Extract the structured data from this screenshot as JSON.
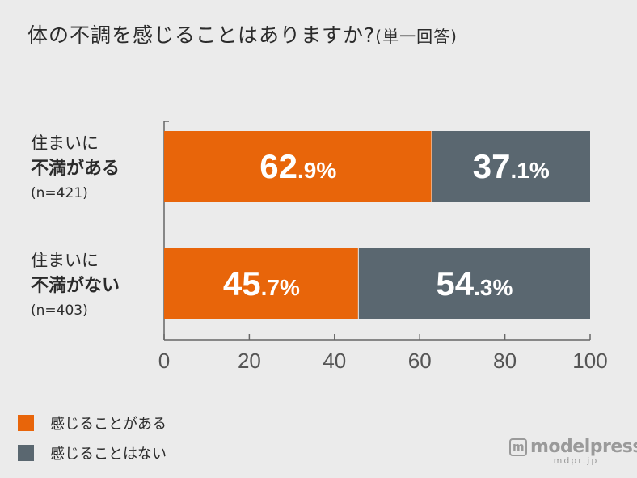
{
  "title": {
    "main": "体の不調を感じることはありますか?",
    "sub": "(単一回答)"
  },
  "rows": [
    {
      "line1": "住まいに",
      "line2": "不満がある",
      "line3": "(n=421)"
    },
    {
      "line1": "住まいに",
      "line2": "不満がない",
      "line3": "(n=403)"
    }
  ],
  "legend": [
    {
      "label": "感じることがある",
      "color": "#e8650a"
    },
    {
      "label": "感じることはない",
      "color": "#5a6770"
    }
  ],
  "watermark": {
    "main": "modelpress",
    "sub": "mdpr.jp",
    "icon": "m-box-icon"
  },
  "chart_data": {
    "type": "bar",
    "orientation": "horizontal",
    "stacked": true,
    "categories": [
      "住まいに不満がある (n=421)",
      "住まいに不満がない (n=403)"
    ],
    "series": [
      {
        "name": "感じることがある",
        "values": [
          62.9,
          45.7
        ],
        "color": "#e8650a"
      },
      {
        "name": "感じることはない",
        "values": [
          37.1,
          54.3
        ],
        "color": "#5a6770"
      }
    ],
    "xlim": [
      0,
      100
    ],
    "xticks": [
      "0",
      "20",
      "40",
      "60",
      "80",
      "100"
    ],
    "data_labels": [
      [
        "62.9%",
        "37.1%"
      ],
      [
        "45.7%",
        "54.3%"
      ]
    ],
    "legend_position": "bottom-left",
    "grid": false
  }
}
